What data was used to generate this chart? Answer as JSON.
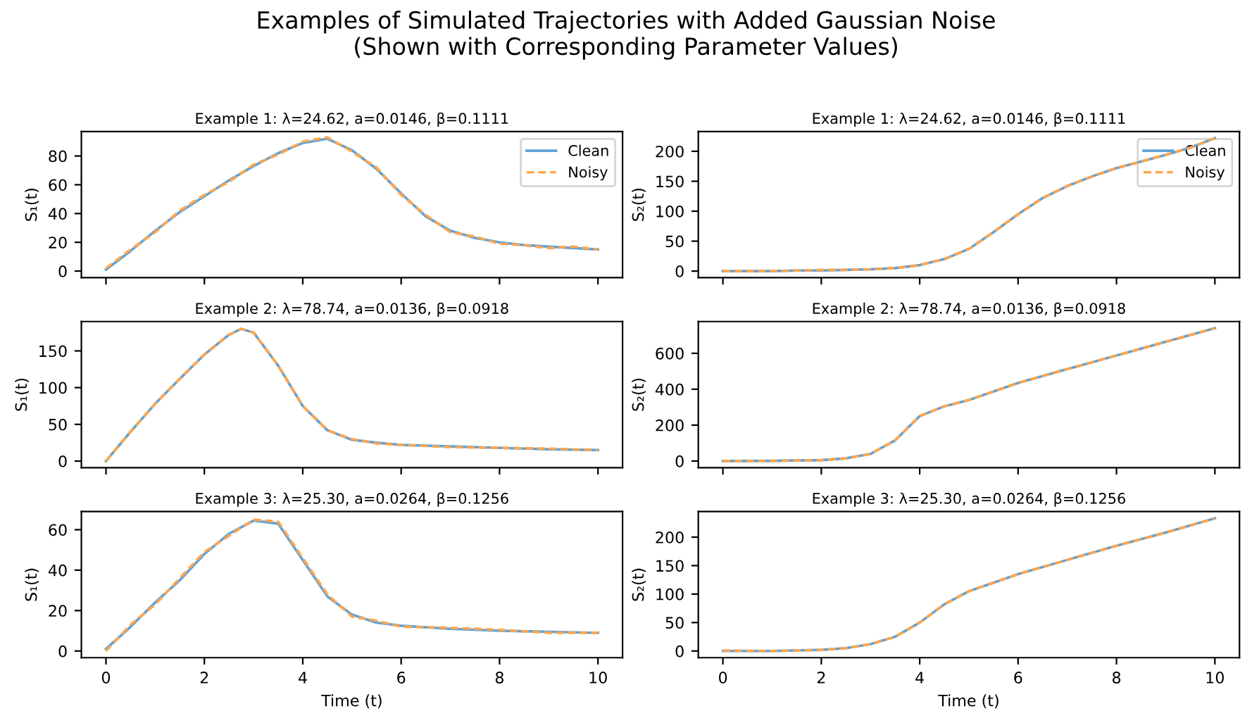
{
  "chart_data": [
    {
      "type": "line",
      "title": "Example 1: λ=24.62, a=0.0146, β=0.1111",
      "ylabel": "S₁(t)",
      "annotations": [
        "Examples of Simulated Trajectories with Added Gaussian Noise\n(Shown with Corresponding Parameter Values)"
      ],
      "legend": "top right",
      "tick_labels": "y",
      "xlim": [
        -0.5,
        10.5
      ],
      "xticks": [
        0,
        2,
        4,
        6,
        8,
        10
      ],
      "ylim": [
        -4.6,
        97
      ],
      "yticks": [
        0,
        20,
        40,
        60,
        80
      ],
      "x": [
        0,
        0.5,
        1,
        1.5,
        2,
        2.5,
        3,
        3.5,
        4,
        4.5,
        5,
        5.5,
        6,
        6.5,
        7,
        7.5,
        8,
        8.5,
        9,
        9.5,
        10
      ],
      "series": [
        {
          "name": "Clean",
          "color": "#5fa2d6",
          "line_style": "solid",
          "values": [
            1,
            14,
            28,
            41,
            52,
            63,
            73,
            82,
            89,
            92,
            84,
            71,
            54,
            38,
            28,
            23,
            20,
            18,
            17,
            16,
            15
          ]
        },
        {
          "name": "Noisy",
          "color": "#ffa64f",
          "line_style": "dashed",
          "values": [
            2,
            15,
            27,
            42,
            53,
            62,
            74,
            81,
            90,
            93,
            83,
            72,
            53,
            39,
            27,
            24,
            19,
            18,
            16,
            17,
            15
          ]
        }
      ]
    },
    {
      "type": "line",
      "title": "Example 1: λ=24.62, a=0.0146, β=0.1111",
      "ylabel": "S₂(t)",
      "legend": "top right",
      "tick_labels": "y",
      "xlim": [
        -0.5,
        10.5
      ],
      "xticks": [
        0,
        2,
        4,
        6,
        8,
        10
      ],
      "ylim": [
        -11,
        233
      ],
      "yticks": [
        0,
        50,
        100,
        150,
        200
      ],
      "x": [
        0,
        0.5,
        1,
        1.5,
        2,
        2.5,
        3,
        3.5,
        4,
        4.5,
        5,
        5.5,
        6,
        6.5,
        7,
        7.5,
        8,
        8.5,
        9,
        9.5,
        10
      ],
      "series": [
        {
          "name": "Clean",
          "color": "#5fa2d6",
          "line_style": "solid",
          "values": [
            0,
            0,
            0,
            1,
            1,
            2,
            3,
            5,
            10,
            20,
            37,
            65,
            95,
            122,
            142,
            158,
            172,
            183,
            194,
            206,
            222
          ]
        },
        {
          "name": "Noisy",
          "color": "#ffa64f",
          "line_style": "dashed",
          "values": [
            0,
            0,
            0,
            1,
            2,
            2,
            3,
            5,
            10,
            20,
            37,
            65,
            95,
            122,
            142,
            158,
            172,
            183,
            194,
            206,
            222
          ]
        }
      ]
    },
    {
      "type": "line",
      "title": "Example 2: λ=78.74, a=0.0136, β=0.0918",
      "ylabel": "S₁(t)",
      "tick_labels": "y",
      "xlim": [
        -0.5,
        10.5
      ],
      "xticks": [
        0,
        2,
        4,
        6,
        8,
        10
      ],
      "ylim": [
        -9,
        190
      ],
      "yticks": [
        0,
        50,
        100,
        150
      ],
      "x": [
        0,
        0.5,
        1,
        1.5,
        2,
        2.5,
        2.75,
        3,
        3.5,
        4,
        4.5,
        5,
        5.5,
        6,
        7,
        8,
        9,
        10
      ],
      "series": [
        {
          "color": "#5fa2d6",
          "line_style": "solid",
          "values": [
            0,
            40,
            78,
            112,
            145,
            172,
            180,
            175,
            130,
            75,
            42,
            29,
            25,
            22,
            20,
            18,
            16,
            15
          ]
        },
        {
          "color": "#ffa64f",
          "line_style": "dashed",
          "values": [
            0,
            40,
            78,
            112,
            145,
            172,
            180,
            175,
            130,
            75,
            42,
            30,
            24,
            22,
            19,
            18,
            17,
            15
          ]
        }
      ]
    },
    {
      "type": "line",
      "title": "Example 2: λ=78.74, a=0.0136, β=0.0918",
      "ylabel": "S₂(t)",
      "tick_labels": "y",
      "xlim": [
        -0.5,
        10.5
      ],
      "xticks": [
        0,
        2,
        4,
        6,
        8,
        10
      ],
      "ylim": [
        -37,
        777
      ],
      "yticks": [
        0,
        200,
        400,
        600
      ],
      "x": [
        0,
        1,
        2,
        2.5,
        3,
        3.5,
        4,
        4.5,
        5,
        6,
        7,
        8,
        9,
        10
      ],
      "series": [
        {
          "color": "#5fa2d6",
          "line_style": "solid",
          "values": [
            0,
            1,
            5,
            15,
            40,
            115,
            250,
            305,
            340,
            435,
            512,
            588,
            664,
            740
          ]
        },
        {
          "color": "#ffa64f",
          "line_style": "dashed",
          "values": [
            0,
            1,
            5,
            15,
            40,
            115,
            250,
            305,
            340,
            435,
            512,
            588,
            664,
            740
          ]
        }
      ]
    },
    {
      "type": "line",
      "title": "Example 3: λ=25.30, a=0.0264, β=0.1256",
      "ylabel": "S₁(t)",
      "xlabel": "Time (t)",
      "xlim": [
        -0.5,
        10.5
      ],
      "xticks": [
        0,
        2,
        4,
        6,
        8,
        10
      ],
      "ylim": [
        -3.3,
        69
      ],
      "yticks": [
        0,
        20,
        40,
        60
      ],
      "x": [
        0,
        0.5,
        1,
        1.5,
        2,
        2.5,
        3,
        3.5,
        4,
        4.5,
        5,
        5.5,
        6,
        7,
        8,
        9,
        10
      ],
      "series": [
        {
          "color": "#5fa2d6",
          "line_style": "solid",
          "values": [
            1,
            12,
            24,
            35,
            48,
            58,
            64.5,
            63,
            45,
            27,
            18,
            14,
            12.5,
            11,
            10,
            9.5,
            9
          ]
        },
        {
          "color": "#ffa64f",
          "line_style": "dashed",
          "values": [
            0,
            13,
            23,
            36,
            49,
            57,
            65,
            64,
            46,
            28,
            17,
            15,
            12,
            11.5,
            10.5,
            9,
            9
          ]
        }
      ]
    },
    {
      "type": "line",
      "title": "Example 3: λ=25.30, a=0.0264, β=0.1256",
      "ylabel": "S₂(t)",
      "xlabel": "Time (t)",
      "xlim": [
        -0.5,
        10.5
      ],
      "xticks": [
        0,
        2,
        4,
        6,
        8,
        10
      ],
      "ylim": [
        -11.7,
        245
      ],
      "yticks": [
        0,
        50,
        100,
        150,
        200
      ],
      "x": [
        0,
        1,
        2,
        2.5,
        3,
        3.5,
        4,
        4.5,
        5,
        5.5,
        6,
        7,
        8,
        9,
        10
      ],
      "series": [
        {
          "color": "#5fa2d6",
          "line_style": "solid",
          "values": [
            0,
            0,
            2,
            5,
            12,
            25,
            50,
            82,
            105,
            120,
            135,
            160,
            185,
            208,
            233
          ]
        },
        {
          "color": "#ffa64f",
          "line_style": "dashed",
          "values": [
            1,
            0,
            2,
            5,
            12,
            25,
            50,
            82,
            105,
            120,
            135,
            160,
            185,
            208,
            233
          ]
        }
      ]
    }
  ]
}
